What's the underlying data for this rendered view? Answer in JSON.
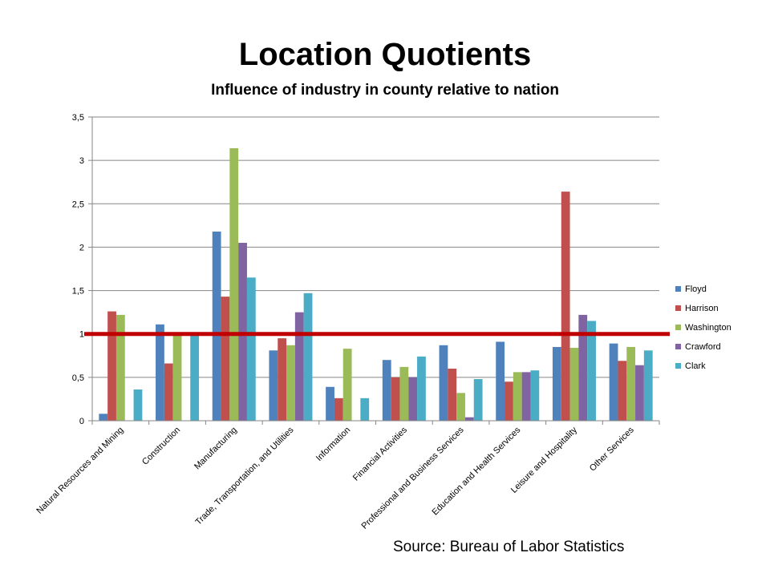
{
  "title": "Location Quotients",
  "subtitle": "Influence of industry in county  relative to nation",
  "source": "Source:  Bureau of Labor Statistics",
  "chart_data": {
    "type": "bar",
    "categories": [
      "Natural Resources and Mining",
      "Construction",
      "Manufacturing",
      "Trade, Transportation, and Utilities",
      "Information",
      "Financial Activities",
      "Professional and Business Services",
      "Education and Health Services",
      "Leisure and Hospitality",
      "Other Services"
    ],
    "series": [
      {
        "name": "Floyd",
        "color": "#4F81BD",
        "values": [
          0.08,
          1.11,
          2.18,
          0.81,
          0.39,
          0.7,
          0.87,
          0.91,
          0.85,
          0.89
        ]
      },
      {
        "name": "Harrison",
        "color": "#C0504D",
        "values": [
          1.26,
          0.66,
          1.43,
          0.95,
          0.26,
          0.5,
          0.6,
          0.45,
          2.64,
          0.69
        ]
      },
      {
        "name": "Washington",
        "color": "#9BBB59",
        "values": [
          1.22,
          1.0,
          3.14,
          0.87,
          0.83,
          0.62,
          0.32,
          0.56,
          0.84,
          0.85
        ]
      },
      {
        "name": "Crawford",
        "color": "#8064A2",
        "values": [
          0,
          0,
          2.05,
          1.25,
          0,
          0.5,
          0.04,
          0.56,
          1.22,
          0.64
        ]
      },
      {
        "name": "Clark",
        "color": "#4BACC6",
        "values": [
          0.36,
          1.0,
          1.65,
          1.47,
          0.26,
          0.74,
          0.48,
          0.58,
          1.15,
          0.81
        ]
      }
    ],
    "yticks": [
      "0",
      "0,5",
      "1",
      "1,5",
      "2",
      "2,5",
      "3",
      "3,5"
    ],
    "ylim": [
      0,
      3.5
    ],
    "grid": true,
    "legend": "right",
    "reference_line": {
      "value": 1,
      "color": "#C00000"
    }
  }
}
